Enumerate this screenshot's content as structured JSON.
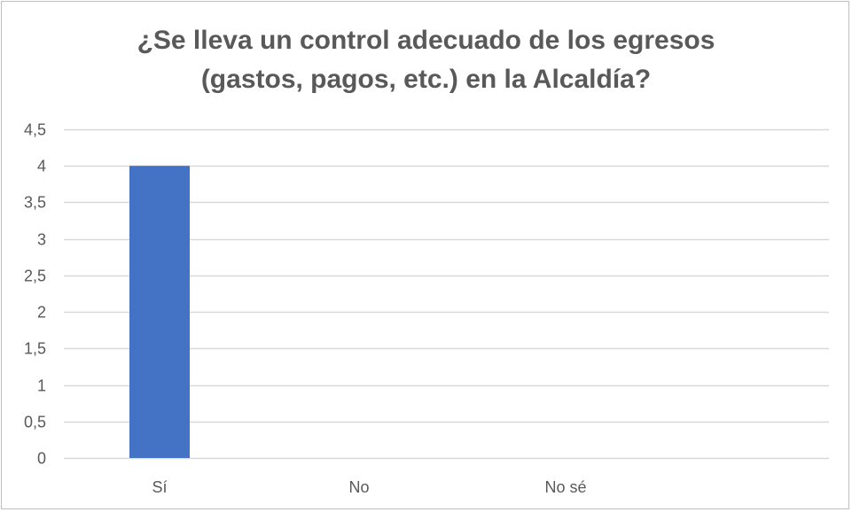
{
  "chart_data": {
    "type": "bar",
    "title_lines": [
      "¿Se lleva un control adecuado de los egresos",
      "(gastos, pagos, etc.) en la Alcaldía?"
    ],
    "categories": [
      "Sí",
      "No",
      "No sé"
    ],
    "values": [
      4,
      0,
      0
    ],
    "ylim": [
      0,
      4.5
    ],
    "yticks": [
      0,
      0.5,
      1,
      1.5,
      2,
      2.5,
      3,
      3.5,
      4,
      4.5
    ],
    "ytick_labels": [
      "0",
      "0,5",
      "1",
      "1,5",
      "2",
      "2,5",
      "3",
      "3,5",
      "4",
      "4,5"
    ],
    "grid": true,
    "legend": "none",
    "bar_color": "#4472c4",
    "grid_color": "#d9d9d9",
    "text_color": "#595959"
  }
}
